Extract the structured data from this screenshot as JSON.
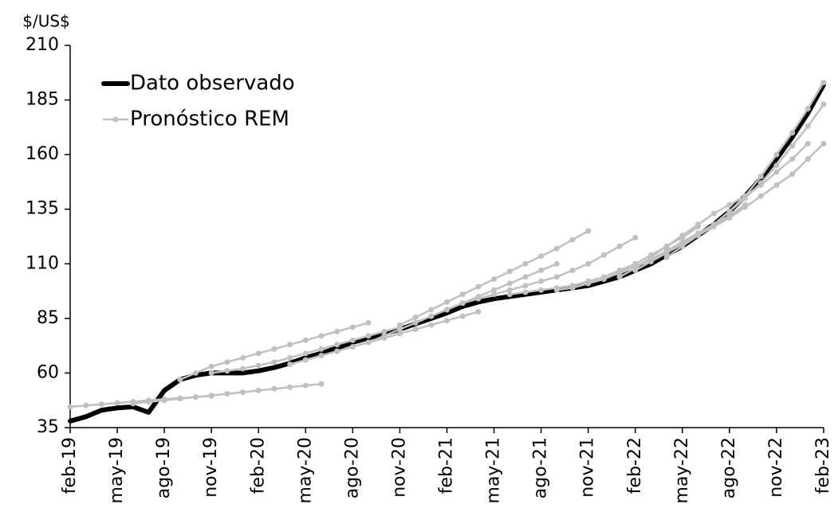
{
  "chart_data": {
    "type": "line",
    "y_label": "$/US$",
    "categories": [
      "feb-19",
      null,
      null,
      "may-19",
      null,
      null,
      "ago-19",
      null,
      null,
      "nov-19",
      null,
      null,
      "feb-20",
      null,
      null,
      "may-20",
      null,
      null,
      "ago-20",
      null,
      null,
      "nov-20",
      null,
      null,
      "feb-21",
      null,
      null,
      "may-21",
      null,
      null,
      "ago-21",
      null,
      null,
      "nov-21",
      null,
      null,
      "feb-22",
      null,
      null,
      "may-22",
      null,
      null,
      "ago-22",
      null,
      null,
      "nov-22",
      null,
      null,
      "feb-23"
    ],
    "ylim": [
      35,
      210
    ],
    "yticks": [
      35,
      60,
      85,
      110,
      135,
      160,
      185,
      210
    ],
    "grid": false,
    "legend": "top-left",
    "series": [
      {
        "name": "Dato observado",
        "color": "#000000",
        "values": [
          38,
          40,
          43,
          44,
          44.5,
          42,
          52,
          57,
          59,
          60,
          60,
          60,
          61,
          62.5,
          64.5,
          67,
          69,
          71.5,
          74,
          76,
          78,
          80,
          82.5,
          85,
          87.5,
          90.5,
          92.5,
          94,
          95,
          96,
          97,
          98,
          99,
          100,
          102,
          104,
          107,
          110,
          114,
          118,
          123,
          128,
          134,
          141,
          149,
          158,
          168,
          179,
          192
        ]
      },
      {
        "name": "Pronóstico REM",
        "color": "#c0c0c0",
        "values": [
          44.5,
          45.1,
          45.7,
          46.3,
          46.9,
          47.5,
          48,
          48.5,
          49,
          49.5,
          null,
          null,
          null,
          null,
          null,
          null,
          null,
          null,
          null,
          null,
          null,
          null,
          null,
          null,
          null,
          null,
          null,
          null,
          null,
          null,
          null,
          null,
          null,
          null,
          null,
          null,
          null,
          null,
          null,
          null,
          null,
          null,
          null,
          null,
          null,
          null,
          null,
          null,
          null
        ]
      },
      {
        "color": "#c0c0c0",
        "values": [
          null,
          null,
          null,
          null,
          46,
          46.8,
          47.5,
          48.2,
          49,
          49.7,
          50.5,
          51.2,
          52,
          52.8,
          53.5,
          54.3,
          55,
          null,
          null,
          null,
          null,
          null,
          null,
          null,
          null,
          null,
          null,
          null,
          null,
          null,
          null,
          null,
          null,
          null,
          null,
          null,
          null,
          null,
          null,
          null,
          null,
          null,
          null,
          null,
          null,
          null,
          null,
          null,
          null
        ]
      },
      {
        "color": "#c0c0c0",
        "values": [
          null,
          null,
          null,
          null,
          null,
          null,
          null,
          57,
          60,
          63,
          65,
          67,
          69,
          71,
          73,
          75,
          77,
          79,
          81,
          83,
          null,
          null,
          null,
          null,
          null,
          null,
          null,
          null,
          null,
          null,
          null,
          null,
          null,
          null,
          null,
          null,
          null,
          null,
          null,
          null,
          null,
          null,
          null,
          null,
          null,
          null,
          null,
          null,
          null
        ]
      },
      {
        "color": "#c0c0c0",
        "values": [
          null,
          null,
          null,
          null,
          null,
          null,
          null,
          null,
          null,
          60,
          61,
          62,
          63.5,
          65,
          67,
          69,
          71,
          73,
          75,
          77,
          79,
          81,
          null,
          null,
          null,
          null,
          null,
          null,
          null,
          null,
          null,
          null,
          null,
          null,
          null,
          null,
          null,
          null,
          null,
          null,
          null,
          null,
          null,
          null,
          null,
          null,
          null,
          null,
          null
        ]
      },
      {
        "color": "#c0c0c0",
        "values": [
          null,
          null,
          null,
          null,
          null,
          null,
          null,
          null,
          null,
          null,
          null,
          null,
          null,
          null,
          64,
          66,
          68,
          70,
          72,
          74,
          76,
          78,
          80,
          82,
          84,
          86,
          88,
          null,
          null,
          null,
          null,
          null,
          null,
          null,
          null,
          null,
          null,
          null,
          null,
          null,
          null,
          null,
          null,
          null,
          null,
          null,
          null,
          null,
          null
        ]
      },
      {
        "color": "#c0c0c0",
        "values": [
          null,
          null,
          null,
          null,
          null,
          null,
          null,
          null,
          null,
          null,
          null,
          null,
          null,
          null,
          null,
          null,
          null,
          null,
          null,
          74,
          77,
          80,
          83,
          86,
          89,
          92,
          95,
          98,
          101,
          104,
          107,
          110,
          null,
          null,
          null,
          null,
          null,
          null,
          null,
          null,
          null,
          null,
          null,
          null,
          null,
          null,
          null,
          null,
          null
        ]
      },
      {
        "color": "#c0c0c0",
        "values": [
          null,
          null,
          null,
          null,
          null,
          null,
          null,
          null,
          null,
          null,
          null,
          null,
          null,
          null,
          null,
          null,
          null,
          null,
          null,
          null,
          null,
          82,
          85.5,
          89,
          92.5,
          96,
          99.5,
          103,
          106.5,
          110,
          113.5,
          117,
          121,
          125,
          null,
          null,
          null,
          null,
          null,
          null,
          null,
          null,
          null,
          null,
          null,
          null,
          null,
          null,
          null
        ]
      },
      {
        "color": "#c0c0c0",
        "values": [
          null,
          null,
          null,
          null,
          null,
          null,
          null,
          null,
          null,
          null,
          null,
          null,
          null,
          null,
          null,
          null,
          null,
          null,
          null,
          null,
          null,
          null,
          null,
          null,
          89,
          92,
          94,
          96,
          98,
          100,
          102,
          104,
          107,
          110,
          114,
          118,
          122,
          null,
          null,
          null,
          null,
          null,
          null,
          null,
          null,
          null,
          null,
          null,
          null
        ]
      },
      {
        "color": "#c0c0c0",
        "values": [
          null,
          null,
          null,
          null,
          null,
          null,
          null,
          null,
          null,
          null,
          null,
          null,
          null,
          null,
          null,
          null,
          null,
          null,
          null,
          null,
          null,
          null,
          null,
          null,
          null,
          null,
          null,
          null,
          96,
          97,
          98,
          99,
          100,
          102,
          104,
          107,
          110,
          114,
          118,
          122,
          127,
          null,
          null,
          null,
          null,
          null,
          null,
          null,
          null
        ]
      },
      {
        "color": "#c0c0c0",
        "values": [
          null,
          null,
          null,
          null,
          null,
          null,
          null,
          null,
          null,
          null,
          null,
          null,
          null,
          null,
          null,
          null,
          null,
          null,
          null,
          null,
          null,
          null,
          null,
          null,
          null,
          null,
          null,
          null,
          null,
          null,
          null,
          98,
          99,
          101,
          103,
          106,
          109,
          112,
          116,
          120,
          124,
          128,
          132,
          137,
          null,
          null,
          null,
          null,
          null
        ]
      },
      {
        "color": "#c0c0c0",
        "values": [
          null,
          null,
          null,
          null,
          null,
          null,
          null,
          null,
          null,
          null,
          null,
          null,
          null,
          null,
          null,
          null,
          null,
          null,
          null,
          null,
          null,
          null,
          null,
          null,
          null,
          null,
          null,
          null,
          null,
          null,
          null,
          null,
          null,
          null,
          null,
          104,
          108,
          113,
          118,
          123,
          128,
          133,
          137,
          141,
          146,
          152,
          158,
          165,
          null
        ]
      },
      {
        "color": "#c0c0c0",
        "values": [
          null,
          null,
          null,
          null,
          null,
          null,
          null,
          null,
          null,
          null,
          null,
          null,
          null,
          null,
          null,
          null,
          null,
          null,
          null,
          null,
          null,
          null,
          null,
          null,
          null,
          null,
          null,
          null,
          null,
          null,
          null,
          null,
          null,
          null,
          null,
          null,
          107,
          111,
          115,
          119,
          123,
          127,
          131,
          136,
          141,
          146,
          151,
          158,
          165
        ]
      },
      {
        "color": "#c0c0c0",
        "values": [
          null,
          null,
          null,
          null,
          null,
          null,
          null,
          null,
          null,
          null,
          null,
          null,
          null,
          null,
          null,
          null,
          null,
          null,
          null,
          null,
          null,
          null,
          null,
          null,
          null,
          null,
          null,
          null,
          null,
          null,
          null,
          null,
          null,
          null,
          null,
          null,
          null,
          null,
          113,
          118,
          123,
          128,
          134,
          140,
          147,
          155,
          164,
          173,
          183
        ]
      },
      {
        "color": "#c0c0c0",
        "values": [
          null,
          null,
          null,
          null,
          null,
          null,
          null,
          null,
          null,
          null,
          null,
          null,
          null,
          null,
          null,
          null,
          null,
          null,
          null,
          null,
          null,
          null,
          null,
          null,
          null,
          null,
          null,
          null,
          null,
          null,
          null,
          null,
          null,
          null,
          null,
          null,
          null,
          null,
          null,
          null,
          123,
          128,
          134,
          141,
          150,
          160,
          170,
          181,
          193
        ]
      }
    ]
  }
}
